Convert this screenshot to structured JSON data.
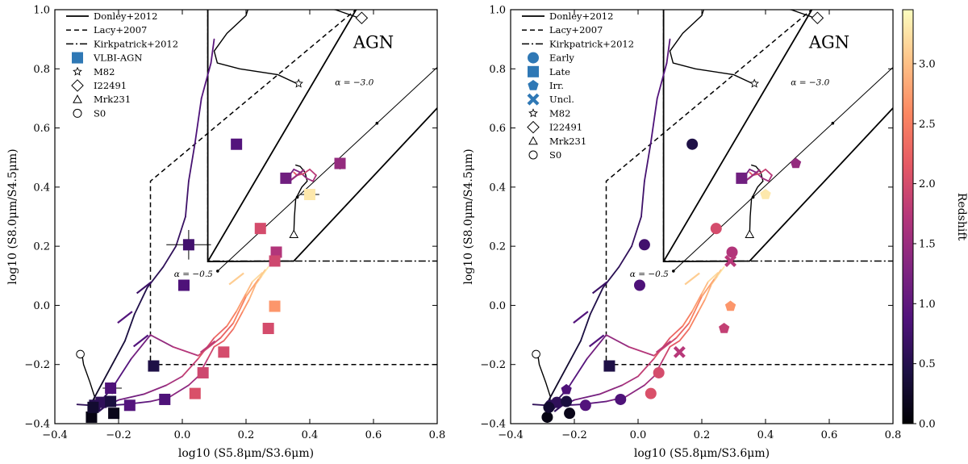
{
  "colors": {
    "colormap": [
      "#000004",
      "#1c1044",
      "#4f127b",
      "#812581",
      "#b5367a",
      "#e55964",
      "#fb8761",
      "#fec287",
      "#fcfdbf"
    ],
    "vlbi_agn_legend": "#2f78b5"
  },
  "colorbar": {
    "label": "Redshift",
    "min": 0.0,
    "max": 3.45,
    "ticks": [
      "0.0",
      "0.5",
      "1.0",
      "1.5",
      "2.0",
      "2.5",
      "3.0"
    ]
  },
  "chart_data": [
    {
      "type": "scatter",
      "panel": "left",
      "xlabel": "log10 (S5.8μm/S3.6μm)",
      "ylabel": "log10 (S8.0μm/S4.5μm)",
      "xlim": [
        -0.4,
        0.8
      ],
      "ylim": [
        -0.4,
        1.0
      ],
      "xticks": [
        "−0.4",
        "−0.2",
        "0.0",
        "0.2",
        "0.4",
        "0.6",
        "0.8"
      ],
      "yticks": [
        "−0.4",
        "−0.2",
        "0.0",
        "0.2",
        "0.4",
        "0.6",
        "0.8",
        "1.0"
      ],
      "region_label": "AGN",
      "alpha_labels": [
        "α = −3.0",
        "α = −0.5"
      ],
      "legend": [
        "Donley+2012",
        "Lacy+2007",
        "Kirkpatrick+2012",
        "VLBI-AGN",
        "M82",
        "I22491",
        "Mrk231",
        "S0"
      ],
      "points": [
        {
          "x": 0.17,
          "y": 0.545,
          "z": 0.9,
          "shape": "square"
        },
        {
          "x": 0.325,
          "y": 0.43,
          "z": 1.15,
          "shape": "square"
        },
        {
          "x": 0.495,
          "y": 0.48,
          "z": 1.45,
          "shape": "square"
        },
        {
          "x": 0.4,
          "y": 0.375,
          "z": 3.3,
          "shape": "square"
        },
        {
          "x": 0.02,
          "y": 0.205,
          "z": 0.75,
          "shape": "square"
        },
        {
          "x": 0.245,
          "y": 0.26,
          "z": 2.0,
          "shape": "square"
        },
        {
          "x": 0.295,
          "y": 0.18,
          "z": 1.7,
          "shape": "square"
        },
        {
          "x": 0.29,
          "y": 0.15,
          "z": 1.95,
          "shape": "square"
        },
        {
          "x": 0.005,
          "y": 0.068,
          "z": 0.85,
          "shape": "square"
        },
        {
          "x": 0.29,
          "y": -0.003,
          "z": 2.7,
          "shape": "square"
        },
        {
          "x": 0.27,
          "y": -0.078,
          "z": 2.0,
          "shape": "square"
        },
        {
          "x": 0.13,
          "y": -0.158,
          "z": 2.0,
          "shape": "square"
        },
        {
          "x": 0.065,
          "y": -0.228,
          "z": 1.95,
          "shape": "square"
        },
        {
          "x": -0.09,
          "y": -0.205,
          "z": 0.45,
          "shape": "square"
        },
        {
          "x": 0.04,
          "y": -0.298,
          "z": 2.05,
          "shape": "square"
        },
        {
          "x": -0.055,
          "y": -0.318,
          "z": 0.85,
          "shape": "square"
        },
        {
          "x": -0.225,
          "y": -0.28,
          "z": 0.85,
          "shape": "square"
        },
        {
          "x": -0.165,
          "y": -0.338,
          "z": 0.9,
          "shape": "square"
        },
        {
          "x": -0.275,
          "y": -0.338,
          "z": 0.55,
          "shape": "square"
        },
        {
          "x": -0.255,
          "y": -0.328,
          "z": 0.6,
          "shape": "square"
        },
        {
          "x": -0.225,
          "y": -0.325,
          "z": 0.4,
          "shape": "square"
        },
        {
          "x": -0.285,
          "y": -0.378,
          "z": 0.1,
          "shape": "square"
        },
        {
          "x": -0.215,
          "y": -0.365,
          "z": 0.15,
          "shape": "square"
        },
        {
          "x": -0.28,
          "y": -0.345,
          "z": 0.3,
          "shape": "square"
        }
      ]
    },
    {
      "type": "scatter",
      "panel": "right",
      "xlabel": "log10 (S5.8μm/S3.6μm)",
      "ylabel": "log10 (S8.0μm/S4.5μm)",
      "xlim": [
        -0.4,
        0.8
      ],
      "ylim": [
        -0.4,
        1.0
      ],
      "xticks": [
        "−0.4",
        "−0.2",
        "0.0",
        "0.2",
        "0.4",
        "0.6",
        "0.8"
      ],
      "yticks": [
        "−0.4",
        "−0.2",
        "0.0",
        "0.2",
        "0.4",
        "0.6",
        "0.8",
        "1.0"
      ],
      "region_label": "AGN",
      "alpha_labels": [
        "α = −3.0",
        "α = −0.5"
      ],
      "legend": [
        "Donley+2012",
        "Lacy+2007",
        "Kirkpatrick+2012",
        "Early",
        "Late",
        "Irr.",
        "Uncl.",
        "M82",
        "I22491",
        "Mrk231",
        "S0"
      ],
      "points": [
        {
          "x": 0.17,
          "y": 0.545,
          "z": 0.45,
          "shape": "circle"
        },
        {
          "x": 0.325,
          "y": 0.43,
          "z": 1.15,
          "shape": "square"
        },
        {
          "x": 0.495,
          "y": 0.48,
          "z": 1.45,
          "shape": "pentagon"
        },
        {
          "x": 0.4,
          "y": 0.375,
          "z": 3.3,
          "shape": "pentagon"
        },
        {
          "x": 0.02,
          "y": 0.205,
          "z": 0.75,
          "shape": "circle"
        },
        {
          "x": 0.245,
          "y": 0.26,
          "z": 2.0,
          "shape": "circle"
        },
        {
          "x": 0.295,
          "y": 0.18,
          "z": 1.7,
          "shape": "circle"
        },
        {
          "x": 0.29,
          "y": 0.15,
          "z": 1.75,
          "shape": "cross"
        },
        {
          "x": 0.005,
          "y": 0.068,
          "z": 0.85,
          "shape": "circle"
        },
        {
          "x": 0.29,
          "y": -0.003,
          "z": 2.7,
          "shape": "pentagon"
        },
        {
          "x": 0.27,
          "y": -0.078,
          "z": 1.85,
          "shape": "pentagon"
        },
        {
          "x": 0.13,
          "y": -0.158,
          "z": 1.75,
          "shape": "cross"
        },
        {
          "x": 0.065,
          "y": -0.228,
          "z": 2.0,
          "shape": "circle"
        },
        {
          "x": -0.09,
          "y": -0.205,
          "z": 0.45,
          "shape": "square"
        },
        {
          "x": 0.04,
          "y": -0.298,
          "z": 2.05,
          "shape": "circle"
        },
        {
          "x": -0.055,
          "y": -0.318,
          "z": 0.85,
          "shape": "circle"
        },
        {
          "x": -0.225,
          "y": -0.285,
          "z": 0.85,
          "shape": "pentagon"
        },
        {
          "x": -0.165,
          "y": -0.338,
          "z": 0.9,
          "shape": "circle"
        },
        {
          "x": -0.275,
          "y": -0.338,
          "z": 0.55,
          "shape": "circle"
        },
        {
          "x": -0.255,
          "y": -0.328,
          "z": 0.6,
          "shape": "circle"
        },
        {
          "x": -0.225,
          "y": -0.325,
          "z": 0.4,
          "shape": "circle"
        },
        {
          "x": -0.285,
          "y": -0.378,
          "z": 0.1,
          "shape": "circle"
        },
        {
          "x": -0.215,
          "y": -0.365,
          "z": 0.15,
          "shape": "circle"
        },
        {
          "x": -0.28,
          "y": -0.345,
          "z": 0.3,
          "shape": "circle"
        }
      ]
    }
  ]
}
